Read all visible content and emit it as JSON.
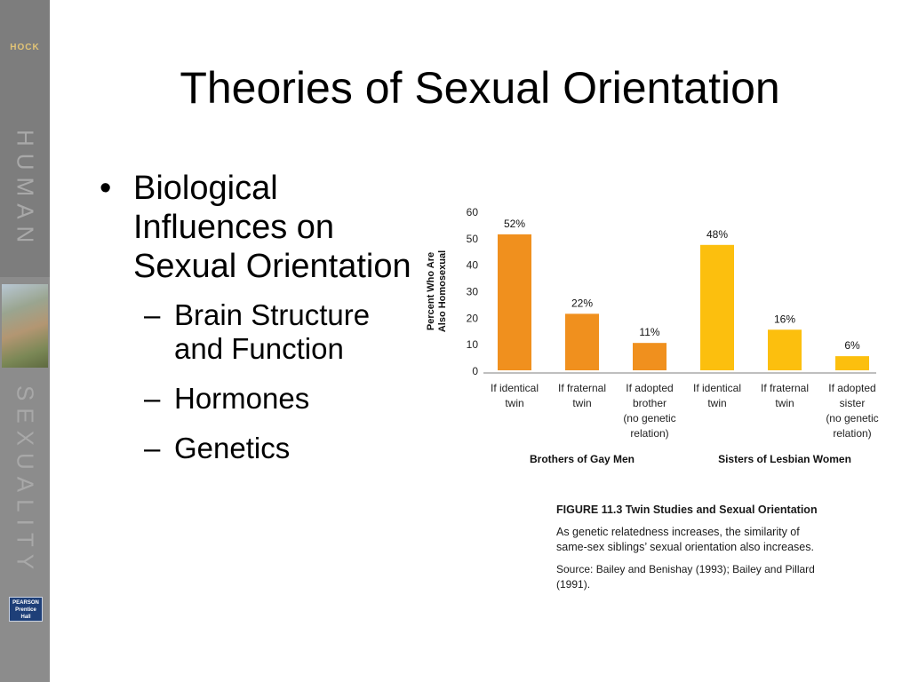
{
  "sidebar": {
    "brand": "HOCK",
    "word_top": "HUMAN",
    "word_bottom": "SEXUALITY",
    "publisher_lines": [
      "PEARSON",
      "Prentice",
      "Hall"
    ]
  },
  "slide": {
    "title": "Theories of Sexual Orientation",
    "bullet_main": "Biological Influences on Sexual Orientation",
    "sub_bullets": [
      "Brain Structure and Function",
      "Hormones",
      "Genetics"
    ]
  },
  "colors": {
    "brothers": "#f0901e",
    "sisters": "#fcbf0e",
    "sidebar": "#8c8c8c"
  },
  "chart_data": {
    "type": "bar",
    "ylabel_lines": [
      "Percent Who Are",
      "Also Homosexual"
    ],
    "ylim": [
      0,
      60
    ],
    "yticks": [
      "0",
      "10",
      "20",
      "30",
      "40",
      "50",
      "60"
    ],
    "categories": [
      [
        "If identical",
        "twin"
      ],
      [
        "If fraternal",
        "twin"
      ],
      [
        "If adopted",
        "brother",
        "(no genetic",
        "relation)"
      ],
      [
        "If identical",
        "twin"
      ],
      [
        "If fraternal",
        "twin"
      ],
      [
        "If adopted",
        "sister",
        "(no genetic",
        "relation)"
      ]
    ],
    "values": [
      52,
      22,
      11,
      48,
      16,
      6
    ],
    "labels": [
      "52%",
      "22%",
      "11%",
      "48%",
      "16%",
      "6%"
    ],
    "groups": [
      {
        "name": "Brothers of Gay Men",
        "indices": [
          0,
          1,
          2
        ]
      },
      {
        "name": "Sisters of Lesbian Women",
        "indices": [
          3,
          4,
          5
        ]
      }
    ]
  },
  "caption": {
    "title": "FIGURE 11.3  Twin Studies and Sexual Orientation",
    "body": "As genetic relatedness increases, the similarity of same-sex siblings’ sexual orientation also increases.",
    "source": "Source: Bailey and Benishay (1993); Bailey and Pillard (1991)."
  }
}
